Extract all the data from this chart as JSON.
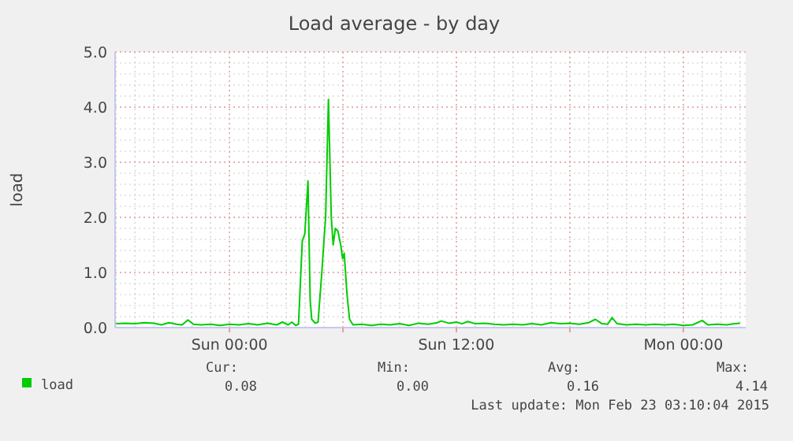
{
  "chart_data": {
    "type": "line",
    "title": "Load average - by day",
    "ylabel": "load",
    "x": [
      "2015-02-21T18:00",
      "2015-02-21T18:30",
      "2015-02-21T19:00",
      "2015-02-21T19:30",
      "2015-02-21T20:00",
      "2015-02-21T20:24",
      "2015-02-21T20:48",
      "2015-02-21T21:12",
      "2015-02-21T21:30",
      "2015-02-21T21:48",
      "2015-02-21T22:06",
      "2015-02-21T22:30",
      "2015-02-21T23:00",
      "2015-02-21T23:30",
      "2015-02-22T00:00",
      "2015-02-22T00:30",
      "2015-02-22T01:00",
      "2015-02-22T01:30",
      "2015-02-22T02:00",
      "2015-02-22T02:30",
      "2015-02-22T02:48",
      "2015-02-22T03:06",
      "2015-02-22T03:18",
      "2015-02-22T03:30",
      "2015-02-22T03:39",
      "2015-02-22T03:51",
      "2015-02-22T03:59",
      "2015-02-22T04:09",
      "2015-02-22T04:16",
      "2015-02-22T04:21",
      "2015-02-22T04:32",
      "2015-02-22T04:41",
      "2015-02-22T04:53",
      "2015-02-22T05:00",
      "2015-02-22T05:05",
      "2015-02-22T05:14",
      "2015-02-22T05:23",
      "2015-02-22T05:29",
      "2015-02-22T05:36",
      "2015-02-22T05:44",
      "2015-02-22T05:53",
      "2015-02-22T05:59",
      "2015-02-22T06:04",
      "2015-02-22T06:13",
      "2015-02-22T06:21",
      "2015-02-22T06:32",
      "2015-02-22T07:00",
      "2015-02-22T07:30",
      "2015-02-22T08:00",
      "2015-02-22T08:30",
      "2015-02-22T09:00",
      "2015-02-22T09:30",
      "2015-02-22T10:00",
      "2015-02-22T10:30",
      "2015-02-22T11:00",
      "2015-02-22T11:12",
      "2015-02-22T11:36",
      "2015-02-22T12:00",
      "2015-02-22T12:18",
      "2015-02-22T12:36",
      "2015-02-22T13:00",
      "2015-02-22T13:30",
      "2015-02-22T14:00",
      "2015-02-22T14:30",
      "2015-02-22T15:00",
      "2015-02-22T15:30",
      "2015-02-22T16:00",
      "2015-02-22T16:30",
      "2015-02-22T17:00",
      "2015-02-22T17:30",
      "2015-02-22T18:00",
      "2015-02-22T18:30",
      "2015-02-22T19:00",
      "2015-02-22T19:21",
      "2015-02-22T19:42",
      "2015-02-22T20:00",
      "2015-02-22T20:14",
      "2015-02-22T20:30",
      "2015-02-22T21:00",
      "2015-02-22T21:30",
      "2015-02-22T22:00",
      "2015-02-22T22:30",
      "2015-02-22T23:00",
      "2015-02-22T23:30",
      "2015-02-23T00:00",
      "2015-02-23T00:30",
      "2015-02-23T01:00",
      "2015-02-23T01:18",
      "2015-02-23T01:48",
      "2015-02-23T02:18",
      "2015-02-23T02:42",
      "2015-02-23T03:00"
    ],
    "series": [
      {
        "name": "load",
        "color": "#00cc00",
        "values": [
          0.07,
          0.08,
          0.07,
          0.09,
          0.08,
          0.05,
          0.09,
          0.06,
          0.05,
          0.14,
          0.06,
          0.05,
          0.06,
          0.04,
          0.06,
          0.05,
          0.07,
          0.05,
          0.08,
          0.05,
          0.1,
          0.05,
          0.1,
          0.04,
          0.06,
          1.57,
          1.7,
          2.66,
          0.5,
          0.15,
          0.08,
          0.1,
          1.0,
          1.6,
          2.0,
          4.14,
          2.0,
          1.5,
          1.8,
          1.75,
          1.5,
          1.25,
          1.35,
          0.6,
          0.15,
          0.05,
          0.06,
          0.04,
          0.06,
          0.05,
          0.07,
          0.04,
          0.08,
          0.06,
          0.09,
          0.12,
          0.08,
          0.1,
          0.07,
          0.11,
          0.07,
          0.08,
          0.06,
          0.05,
          0.06,
          0.05,
          0.07,
          0.05,
          0.09,
          0.07,
          0.08,
          0.06,
          0.09,
          0.15,
          0.07,
          0.06,
          0.18,
          0.07,
          0.05,
          0.06,
          0.05,
          0.06,
          0.05,
          0.06,
          0.04,
          0.05,
          0.13,
          0.05,
          0.06,
          0.05,
          0.07,
          0.08
        ]
      }
    ],
    "xlim": [
      "2015-02-21T17:57",
      "2015-02-23T03:18"
    ],
    "xticks": [
      {
        "value": "2015-02-22T00:00",
        "label": "Sun 00:00"
      },
      {
        "value": "2015-02-22T06:00",
        "label": null
      },
      {
        "value": "2015-02-22T12:00",
        "label": "Sun 12:00"
      },
      {
        "value": "2015-02-22T18:00",
        "label": null
      },
      {
        "value": "2015-02-23T00:00",
        "label": "Mon 00:00"
      }
    ],
    "ylim": [
      0,
      5
    ],
    "yticks": [
      {
        "value": 0,
        "label": "0.0"
      },
      {
        "value": 1,
        "label": "1.0"
      },
      {
        "value": 2,
        "label": "2.0"
      },
      {
        "value": 3,
        "label": "3.0"
      },
      {
        "value": 4,
        "label": "4.0"
      },
      {
        "value": 5,
        "label": "5.0"
      }
    ],
    "grid": true,
    "legend": "bottom left",
    "marker": "none",
    "line_style": "solid",
    "annotations": [
      "Cur:",
      "0.08",
      "Min:",
      "0.00",
      "Avg:",
      "0.16",
      "Max:",
      "4.14",
      "Last update: Mon Feb 23 03:10:04 2015"
    ]
  }
}
